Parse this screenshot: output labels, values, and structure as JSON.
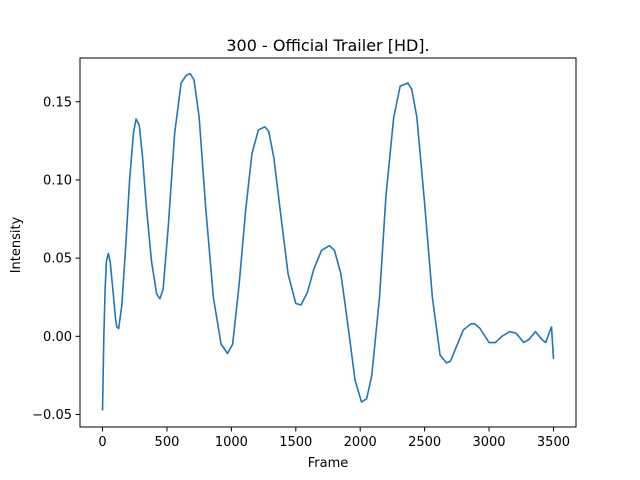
{
  "chart_data": {
    "type": "line",
    "title": "300 - Official Trailer [HD].",
    "xlabel": "Frame",
    "ylabel": "Intensity",
    "xlim": [
      -175,
      3675
    ],
    "ylim": [
      -0.058,
      0.178
    ],
    "xticks": [
      0,
      500,
      1000,
      1500,
      2000,
      2500,
      3000,
      3500
    ],
    "xtick_labels": [
      "0",
      "500",
      "1000",
      "1500",
      "2000",
      "2500",
      "3000",
      "3500"
    ],
    "yticks": [
      -0.05,
      0.0,
      0.05,
      0.1,
      0.15
    ],
    "ytick_labels": [
      "−0.05",
      "0.00",
      "0.05",
      "0.10",
      "0.15"
    ],
    "grid": false,
    "legend": "none",
    "series": [
      {
        "color": "#1f77b4",
        "x": [
          0,
          10,
          20,
          30,
          45,
          60,
          80,
          100,
          110,
          125,
          150,
          180,
          210,
          240,
          260,
          285,
          310,
          340,
          380,
          420,
          445,
          470,
          510,
          560,
          610,
          650,
          680,
          710,
          750,
          800,
          860,
          920,
          970,
          1010,
          1060,
          1110,
          1160,
          1210,
          1260,
          1290,
          1330,
          1380,
          1440,
          1500,
          1540,
          1590,
          1640,
          1700,
          1760,
          1800,
          1850,
          1900,
          1960,
          2010,
          2050,
          2090,
          2150,
          2200,
          2260,
          2310,
          2370,
          2400,
          2440,
          2500,
          2560,
          2620,
          2670,
          2700,
          2740,
          2800,
          2860,
          2890,
          2930,
          3000,
          3050,
          3100,
          3160,
          3210,
          3270,
          3310,
          3360,
          3410,
          3440,
          3470,
          3485,
          3500
        ],
        "y": [
          -0.047,
          0.0,
          0.03,
          0.048,
          0.053,
          0.047,
          0.03,
          0.012,
          0.006,
          0.005,
          0.02,
          0.058,
          0.1,
          0.13,
          0.139,
          0.135,
          0.115,
          0.083,
          0.048,
          0.027,
          0.024,
          0.03,
          0.07,
          0.13,
          0.162,
          0.167,
          0.168,
          0.164,
          0.14,
          0.083,
          0.025,
          -0.005,
          -0.011,
          -0.005,
          0.033,
          0.08,
          0.117,
          0.132,
          0.134,
          0.131,
          0.114,
          0.08,
          0.04,
          0.021,
          0.02,
          0.028,
          0.043,
          0.055,
          0.058,
          0.055,
          0.04,
          0.01,
          -0.028,
          -0.042,
          -0.04,
          -0.025,
          0.025,
          0.09,
          0.14,
          0.16,
          0.162,
          0.158,
          0.14,
          0.085,
          0.025,
          -0.012,
          -0.017,
          -0.016,
          -0.008,
          0.004,
          0.008,
          0.008,
          0.005,
          -0.004,
          -0.004,
          0.0,
          0.003,
          0.002,
          -0.004,
          -0.002,
          0.003,
          -0.002,
          -0.004,
          0.003,
          0.006,
          -0.014
        ]
      }
    ]
  }
}
